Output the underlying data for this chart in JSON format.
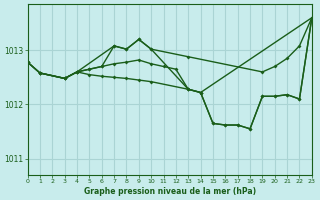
{
  "title": "Graphe pression niveau de la mer (hPa)",
  "bg_color": "#c8ecec",
  "grid_color": "#aad4d4",
  "line_color": "#1a5e1a",
  "ylim": [
    1010.7,
    1013.85
  ],
  "xlim": [
    0,
    23
  ],
  "yticks": [
    1011,
    1012,
    1013
  ],
  "xticks": [
    0,
    1,
    2,
    3,
    4,
    5,
    6,
    7,
    8,
    9,
    10,
    11,
    12,
    13,
    14,
    15,
    16,
    17,
    18,
    19,
    20,
    21,
    22,
    23
  ],
  "lines": [
    {
      "x": [
        0,
        1,
        3,
        4,
        5,
        6,
        7,
        8,
        9,
        10,
        13,
        19,
        20,
        21,
        22,
        23
      ],
      "y": [
        1012.78,
        1012.58,
        1012.48,
        1012.6,
        1012.65,
        1012.7,
        1013.08,
        1013.02,
        1013.2,
        1013.02,
        1012.88,
        1012.6,
        1012.7,
        1012.85,
        1013.08,
        1013.6
      ]
    },
    {
      "x": [
        0,
        1,
        3,
        4,
        7,
        8,
        9,
        10,
        13,
        14,
        15,
        16,
        17,
        18,
        19,
        20,
        21,
        22,
        23
      ],
      "y": [
        1012.78,
        1012.58,
        1012.48,
        1012.6,
        1013.08,
        1013.02,
        1013.2,
        1013.02,
        1012.28,
        1012.22,
        1011.65,
        1011.62,
        1011.62,
        1011.55,
        1012.15,
        1012.15,
        1012.18,
        1012.1,
        1013.6
      ]
    },
    {
      "x": [
        0,
        1,
        3,
        4,
        5,
        6,
        7,
        8,
        9,
        10,
        11,
        12,
        13,
        14,
        23
      ],
      "y": [
        1012.78,
        1012.58,
        1012.48,
        1012.6,
        1012.65,
        1012.7,
        1012.75,
        1012.78,
        1012.82,
        1012.75,
        1012.7,
        1012.65,
        1012.28,
        1012.22,
        1013.6
      ]
    },
    {
      "x": [
        1,
        3,
        4,
        5,
        6,
        7,
        8,
        9,
        10,
        13,
        14,
        15,
        16,
        17,
        18,
        19,
        20,
        21,
        22,
        23
      ],
      "y": [
        1012.58,
        1012.48,
        1012.6,
        1012.55,
        1012.52,
        1012.5,
        1012.48,
        1012.45,
        1012.42,
        1012.28,
        1012.22,
        1011.65,
        1011.62,
        1011.62,
        1011.55,
        1012.15,
        1012.15,
        1012.18,
        1012.1,
        1013.6
      ]
    }
  ]
}
